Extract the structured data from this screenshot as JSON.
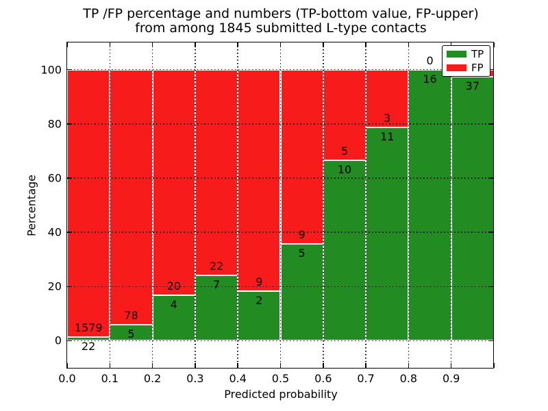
{
  "title": {
    "line1": "TP /FP percentage and numbers (TP-bottom value, FP-upper)",
    "line2": "from among 1845 submitted L-type contacts"
  },
  "axes": {
    "xlabel": "Predicted probability",
    "ylabel": "Percentage",
    "x_tick_labels": [
      "0.0",
      "0.1",
      "0.2",
      "0.3",
      "0.4",
      "0.5",
      "0.6",
      "0.7",
      "0.8",
      "0.9"
    ],
    "x_tick_values": [
      0.0,
      0.1,
      0.2,
      0.3,
      0.4,
      0.5,
      0.6,
      0.7,
      0.8,
      0.9
    ],
    "y_tick_labels": [
      "0",
      "20",
      "40",
      "60",
      "80",
      "100"
    ],
    "y_tick_values": [
      0,
      20,
      40,
      60,
      80,
      100
    ]
  },
  "legend": {
    "items": [
      {
        "label": "TP",
        "color": "#228b22"
      },
      {
        "label": "FP",
        "color": "#f81b1b"
      }
    ]
  },
  "colors": {
    "tp_green": "#228b22",
    "fp_red": "#f81b1b",
    "bar_edge": "#ffffff",
    "grid": "#000000"
  },
  "chart_data": {
    "type": "bar",
    "stacked": true,
    "normalized_to_percent": true,
    "title": "TP /FP percentage and numbers (TP-bottom value, FP-upper) from among 1845 submitted L-type contacts",
    "xlabel": "Predicted probability",
    "ylabel": "Percentage",
    "xlim": [
      0.0,
      1.0
    ],
    "ylim": [
      -10,
      110
    ],
    "grid": true,
    "legend_position": "upper right",
    "bin_width": 0.1,
    "bin_starts": [
      0.0,
      0.1,
      0.2,
      0.3,
      0.4,
      0.5,
      0.6,
      0.7,
      0.8,
      0.9
    ],
    "categories": [
      "0.0-0.1",
      "0.1-0.2",
      "0.2-0.3",
      "0.3-0.4",
      "0.4-0.5",
      "0.5-0.6",
      "0.6-0.7",
      "0.7-0.8",
      "0.8-0.9",
      "0.9-1.0"
    ],
    "series": [
      {
        "name": "TP",
        "color": "#228b22",
        "counts": [
          22,
          5,
          4,
          7,
          2,
          5,
          10,
          11,
          16,
          37
        ]
      },
      {
        "name": "FP",
        "color": "#f81b1b",
        "counts": [
          1579,
          78,
          20,
          22,
          9,
          9,
          5,
          3,
          0,
          1
        ]
      }
    ],
    "tp_percent_of_bin": [
      1.37,
      6.02,
      16.67,
      24.14,
      18.18,
      35.71,
      66.67,
      78.57,
      100.0,
      97.37
    ],
    "total_contacts": 1845
  }
}
